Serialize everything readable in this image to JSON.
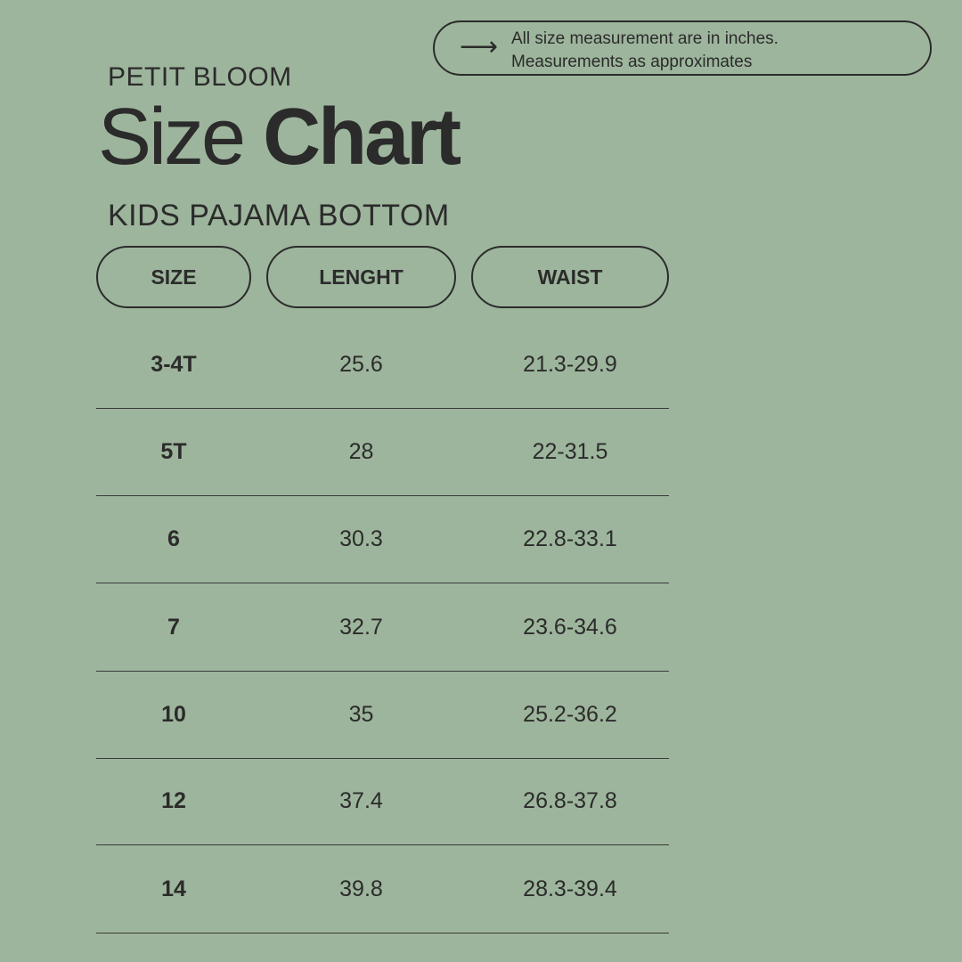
{
  "note": {
    "icon": "arrow-right-icon",
    "line1": "All size measurement are in inches.",
    "line2": "Measurements as approximates"
  },
  "brand": "PETIT BLOOM",
  "title": {
    "light": "Size",
    "bold": "Chart"
  },
  "subtitle": "KIDS PAJAMA BOTTOM",
  "columns": [
    "SIZE",
    "LENGHT",
    "WAIST"
  ],
  "rows": [
    [
      "3-4T",
      "25.6",
      "21.3-29.9"
    ],
    [
      "5T",
      "28",
      "22-31.5"
    ],
    [
      "6",
      "30.3",
      "22.8-33.1"
    ],
    [
      "7",
      "32.7",
      "23.6-34.6"
    ],
    [
      "10",
      "35",
      "25.2-36.2"
    ],
    [
      "12",
      "37.4",
      "26.8-37.8"
    ],
    [
      "14",
      "39.8",
      "28.3-39.4"
    ]
  ],
  "colors": {
    "background": "#9db59c",
    "text": "#2b2b2b"
  }
}
